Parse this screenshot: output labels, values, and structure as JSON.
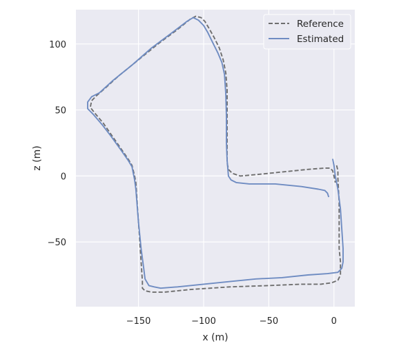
{
  "chart_data": {
    "type": "line",
    "title": "",
    "xlabel": "x (m)",
    "ylabel": "z (m)",
    "xlim": [
      -198,
      16
    ],
    "ylim": [
      -99,
      126
    ],
    "xticks": [
      -150,
      -100,
      -50,
      0
    ],
    "yticks": [
      -50,
      0,
      50,
      100
    ],
    "xtick_labels": [
      "−150",
      "−100",
      "−50",
      "0"
    ],
    "ytick_labels": [
      "−50",
      "0",
      "50",
      "100"
    ],
    "grid": true,
    "legend": {
      "position": "upper-right"
    },
    "background": "#eaeaf2",
    "series": [
      {
        "name": "Reference",
        "style": "dashed",
        "color": "#6e6e6e",
        "points": [
          [
            2,
            8
          ],
          [
            3,
            4
          ],
          [
            3,
            -2
          ],
          [
            4,
            -20
          ],
          [
            4,
            -40
          ],
          [
            4,
            -55
          ],
          [
            5,
            -65
          ],
          [
            5,
            -75
          ],
          [
            3,
            -79
          ],
          [
            -2,
            -81
          ],
          [
            -10,
            -82
          ],
          [
            -25,
            -82
          ],
          [
            -50,
            -83
          ],
          [
            -80,
            -84
          ],
          [
            -110,
            -86
          ],
          [
            -130,
            -88
          ],
          [
            -140,
            -88
          ],
          [
            -145,
            -87
          ],
          [
            -147,
            -85
          ],
          [
            -147,
            -80
          ],
          [
            -148,
            -65
          ],
          [
            -149,
            -50
          ],
          [
            -150,
            -35
          ],
          [
            -151,
            -20
          ],
          [
            -152,
            -5
          ],
          [
            -153,
            0
          ],
          [
            -155,
            8
          ],
          [
            -158,
            13
          ],
          [
            -163,
            20
          ],
          [
            -170,
            30
          ],
          [
            -177,
            40
          ],
          [
            -183,
            47
          ],
          [
            -187,
            52
          ],
          [
            -186,
            57
          ],
          [
            -182,
            61
          ],
          [
            -175,
            67
          ],
          [
            -165,
            76
          ],
          [
            -150,
            88
          ],
          [
            -135,
            100
          ],
          [
            -120,
            111
          ],
          [
            -110,
            119
          ],
          [
            -106,
            121
          ],
          [
            -102,
            120
          ],
          [
            -99,
            117
          ],
          [
            -96,
            112
          ],
          [
            -92,
            105
          ],
          [
            -88,
            97
          ],
          [
            -85,
            88
          ],
          [
            -83,
            78
          ],
          [
            -82,
            65
          ],
          [
            -82,
            50
          ],
          [
            -82,
            35
          ],
          [
            -82,
            20
          ],
          [
            -82,
            10
          ],
          [
            -81,
            5
          ],
          [
            -78,
            2
          ],
          [
            -72,
            0
          ],
          [
            -60,
            1
          ],
          [
            -40,
            3
          ],
          [
            -20,
            5
          ],
          [
            -7,
            6
          ],
          [
            -3,
            6
          ],
          [
            -1,
            4
          ],
          [
            0,
            0
          ],
          [
            1,
            -5
          ]
        ]
      },
      {
        "name": "Estimated",
        "style": "solid",
        "color": "#6f8cc2",
        "points": [
          [
            -1,
            13
          ],
          [
            0,
            8
          ],
          [
            1,
            0
          ],
          [
            3,
            -10
          ],
          [
            5,
            -25
          ],
          [
            6,
            -40
          ],
          [
            7,
            -55
          ],
          [
            7,
            -65
          ],
          [
            6,
            -70
          ],
          [
            3,
            -73
          ],
          [
            -5,
            -74
          ],
          [
            -20,
            -75
          ],
          [
            -40,
            -77
          ],
          [
            -60,
            -78
          ],
          [
            -80,
            -80
          ],
          [
            -100,
            -82
          ],
          [
            -120,
            -84
          ],
          [
            -133,
            -85
          ],
          [
            -138,
            -84
          ],
          [
            -142,
            -83
          ],
          [
            -145,
            -78
          ],
          [
            -146,
            -70
          ],
          [
            -148,
            -55
          ],
          [
            -150,
            -35
          ],
          [
            -152,
            -10
          ],
          [
            -153,
            -3
          ],
          [
            -155,
            7
          ],
          [
            -158,
            12
          ],
          [
            -163,
            19
          ],
          [
            -171,
            30
          ],
          [
            -178,
            39
          ],
          [
            -185,
            47
          ],
          [
            -189,
            51
          ],
          [
            -189,
            56
          ],
          [
            -186,
            60
          ],
          [
            -180,
            63
          ],
          [
            -170,
            72
          ],
          [
            -155,
            84
          ],
          [
            -140,
            97
          ],
          [
            -125,
            108
          ],
          [
            -113,
            117
          ],
          [
            -108,
            120
          ],
          [
            -104,
            118
          ],
          [
            -100,
            114
          ],
          [
            -97,
            109
          ],
          [
            -93,
            101
          ],
          [
            -89,
            93
          ],
          [
            -86,
            86
          ],
          [
            -84,
            77
          ],
          [
            -83,
            62
          ],
          [
            -82.5,
            45
          ],
          [
            -82.5,
            25
          ],
          [
            -82,
            12
          ],
          [
            -81,
            0
          ],
          [
            -79,
            -3
          ],
          [
            -75,
            -5
          ],
          [
            -65,
            -6
          ],
          [
            -45,
            -6
          ],
          [
            -25,
            -8
          ],
          [
            -12,
            -10
          ],
          [
            -7,
            -11
          ],
          [
            -5,
            -13
          ],
          [
            -4,
            -16
          ]
        ]
      }
    ]
  }
}
